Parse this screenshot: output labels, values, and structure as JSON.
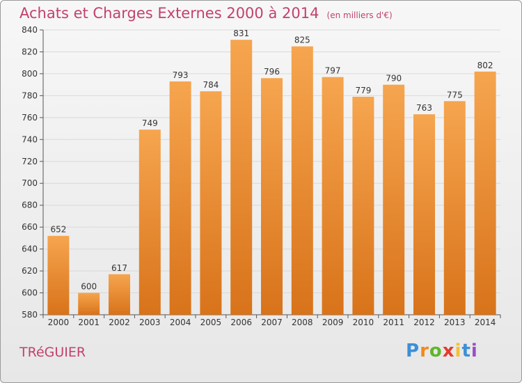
{
  "title": "Achats et Charges Externes 2000 à 2014",
  "unit_note": "(en milliers d'€)",
  "city": "TRéGUIER",
  "logo": [
    "P",
    "r",
    "o",
    "x",
    "i",
    "t",
    "i"
  ],
  "colors": {
    "bar_top": "#f6a54f",
    "bar_bottom": "#d8731a",
    "title": "#c2416e",
    "grid": "#d9d9d9"
  },
  "chart_data": {
    "type": "bar",
    "categories": [
      "2000",
      "2001",
      "2002",
      "2003",
      "2004",
      "2005",
      "2006",
      "2007",
      "2008",
      "2009",
      "2010",
      "2011",
      "2012",
      "2013",
      "2014"
    ],
    "values": [
      652,
      600,
      617,
      749,
      793,
      784,
      831,
      796,
      825,
      797,
      779,
      790,
      763,
      775,
      802
    ],
    "ylim": [
      580,
      840
    ],
    "yticks": [
      580,
      600,
      620,
      640,
      660,
      680,
      700,
      720,
      740,
      760,
      780,
      800,
      820,
      840
    ],
    "grid": true,
    "title": "Achats et Charges Externes 2000 à 2014",
    "xlabel": "",
    "ylabel": ""
  }
}
